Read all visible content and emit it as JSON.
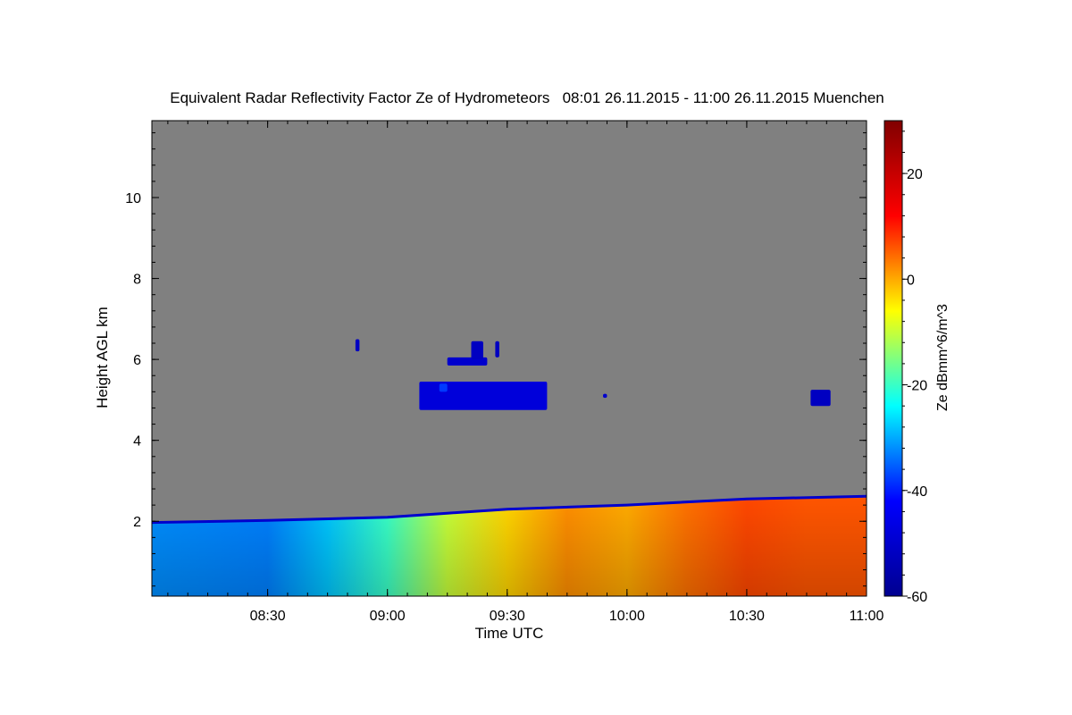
{
  "chart_data": {
    "type": "heatmap",
    "title": "Equivalent Radar Reflectivity Factor Ze of Hydrometeors   08:01 26.11.2015 - 11:00 26.11.2015 Muenchen",
    "xlabel": "Time UTC",
    "ylabel": "Height AGL km",
    "colorbar_label": "Ze dBmm^6/m^3",
    "background_color": "#808080",
    "x_range": [
      "08:01",
      "11:00"
    ],
    "x_ticks": [
      "08:30",
      "09:00",
      "09:30",
      "10:00",
      "10:30",
      "11:00"
    ],
    "ylim": [
      0.15,
      11.9
    ],
    "y_ticks": [
      2,
      4,
      6,
      8,
      10
    ],
    "colorbar_range": [
      -60,
      30
    ],
    "colorbar_ticks": [
      -60,
      -40,
      -20,
      0,
      20
    ],
    "colormap": "jet",
    "colormap_stops": [
      "#00008f",
      "#0000ff",
      "#00ffff",
      "#ffff00",
      "#ff0000",
      "#800000"
    ],
    "boundary_layer_echo": {
      "top_height_km": [
        {
          "time": "08:01",
          "km": 1.97
        },
        {
          "time": "08:30",
          "km": 2.02
        },
        {
          "time": "09:00",
          "km": 2.1
        },
        {
          "time": "09:15",
          "km": 2.2
        },
        {
          "time": "09:30",
          "km": 2.3
        },
        {
          "time": "10:00",
          "km": 2.4
        },
        {
          "time": "10:30",
          "km": 2.55
        },
        {
          "time": "11:00",
          "km": 2.62
        }
      ],
      "mean_ze_dbz": [
        {
          "time": "08:01",
          "dbz": -32
        },
        {
          "time": "08:30",
          "dbz": -33
        },
        {
          "time": "08:45",
          "dbz": -28
        },
        {
          "time": "09:00",
          "dbz": -20
        },
        {
          "time": "09:15",
          "dbz": -10
        },
        {
          "time": "09:30",
          "dbz": -3
        },
        {
          "time": "09:45",
          "dbz": 2
        },
        {
          "time": "10:00",
          "dbz": 0
        },
        {
          "time": "10:15",
          "dbz": 4
        },
        {
          "time": "10:30",
          "dbz": 7
        },
        {
          "time": "10:45",
          "dbz": 6
        },
        {
          "time": "11:00",
          "dbz": 6
        }
      ]
    },
    "cloud_features": [
      {
        "start": "09:08",
        "end": "09:40",
        "base_km": 4.75,
        "top_km": 5.45,
        "ze_dbz": -48
      },
      {
        "start": "09:13",
        "end": "09:15",
        "base_km": 5.2,
        "top_km": 5.4,
        "ze_dbz": -38
      },
      {
        "start": "09:15",
        "end": "09:25",
        "base_km": 5.85,
        "top_km": 6.05,
        "ze_dbz": -50
      },
      {
        "start": "09:21",
        "end": "09:24",
        "base_km": 6.0,
        "top_km": 6.45,
        "ze_dbz": -52
      },
      {
        "start": "09:27",
        "end": "09:28",
        "base_km": 6.05,
        "top_km": 6.45,
        "ze_dbz": -52
      },
      {
        "start": "08:52",
        "end": "08:53",
        "base_km": 6.2,
        "top_km": 6.5,
        "ze_dbz": -52
      },
      {
        "start": "10:46",
        "end": "10:51",
        "base_km": 4.85,
        "top_km": 5.25,
        "ze_dbz": -52
      },
      {
        "start": "09:54",
        "end": "09:55",
        "base_km": 5.05,
        "top_km": 5.15,
        "ze_dbz": -50
      }
    ]
  }
}
